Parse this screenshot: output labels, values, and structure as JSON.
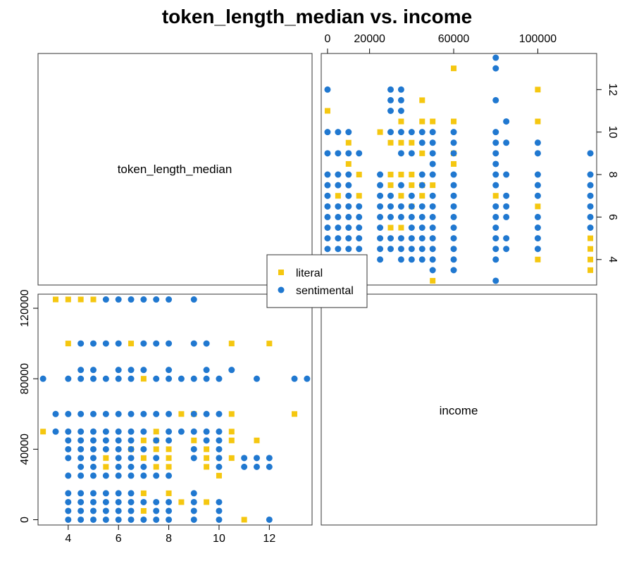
{
  "chart_data": {
    "type": "scatter",
    "title": "token_length_median vs. income",
    "variables": [
      "token_length_median",
      "income"
    ],
    "axes": {
      "token_length_median": {
        "range": [
          2.8,
          13.7
        ],
        "ticks": [
          4,
          6,
          8,
          10,
          12
        ]
      },
      "income": {
        "range": [
          -3000,
          128000
        ],
        "ticks_bottom_panel": [
          0,
          40000,
          80000,
          120000
        ],
        "ticks_top_panel": [
          0,
          20000,
          60000,
          100000
        ]
      }
    },
    "legend": {
      "position": "center",
      "entries": [
        "literal",
        "sentimental"
      ]
    },
    "series": [
      {
        "name": "literal",
        "color": "#F5C710",
        "marker": "square",
        "points": [
          [
            3.5,
            125000
          ],
          [
            4,
            125000
          ],
          [
            4.5,
            125000
          ],
          [
            5,
            125000
          ],
          [
            4,
            100000
          ],
          [
            6.5,
            100000
          ],
          [
            10.5,
            100000
          ],
          [
            12,
            100000
          ],
          [
            7,
            80000
          ],
          [
            8.5,
            60000
          ],
          [
            9,
            60000
          ],
          [
            10.5,
            60000
          ],
          [
            13,
            60000
          ],
          [
            3,
            50000
          ],
          [
            7.5,
            50000
          ],
          [
            10.5,
            50000
          ],
          [
            7,
            45000
          ],
          [
            7.5,
            45000
          ],
          [
            9,
            45000
          ],
          [
            10.5,
            45000
          ],
          [
            11.5,
            45000
          ],
          [
            6.5,
            40000
          ],
          [
            7.5,
            40000
          ],
          [
            8,
            40000
          ],
          [
            9.5,
            40000
          ],
          [
            5.5,
            35000
          ],
          [
            7,
            35000
          ],
          [
            8,
            35000
          ],
          [
            9.5,
            35000
          ],
          [
            10.5,
            35000
          ],
          [
            5.5,
            30000
          ],
          [
            7.5,
            30000
          ],
          [
            8,
            30000
          ],
          [
            9.5,
            30000
          ],
          [
            10,
            25000
          ],
          [
            7,
            15000
          ],
          [
            8,
            15000
          ],
          [
            8.5,
            10000
          ],
          [
            9.5,
            10000
          ],
          [
            7,
            5000
          ],
          [
            11,
            0
          ]
        ]
      },
      {
        "name": "sentimental",
        "color": "#2078D0",
        "marker": "circle",
        "points": [
          [
            5.5,
            125000
          ],
          [
            6,
            125000
          ],
          [
            6.5,
            125000
          ],
          [
            7,
            125000
          ],
          [
            7.5,
            125000
          ],
          [
            8,
            125000
          ],
          [
            9,
            125000
          ],
          [
            4.5,
            100000
          ],
          [
            5,
            100000
          ],
          [
            5.5,
            100000
          ],
          [
            6,
            100000
          ],
          [
            7,
            100000
          ],
          [
            7.5,
            100000
          ],
          [
            8,
            100000
          ],
          [
            9,
            100000
          ],
          [
            9.5,
            100000
          ],
          [
            4.5,
            85000
          ],
          [
            5,
            85000
          ],
          [
            6,
            85000
          ],
          [
            6.5,
            85000
          ],
          [
            7,
            85000
          ],
          [
            8,
            85000
          ],
          [
            9.5,
            85000
          ],
          [
            10.5,
            85000
          ],
          [
            3,
            80000
          ],
          [
            4,
            80000
          ],
          [
            4.5,
            80000
          ],
          [
            5,
            80000
          ],
          [
            5.5,
            80000
          ],
          [
            6,
            80000
          ],
          [
            6.5,
            80000
          ],
          [
            7.5,
            80000
          ],
          [
            8,
            80000
          ],
          [
            8.5,
            80000
          ],
          [
            9,
            80000
          ],
          [
            9.5,
            80000
          ],
          [
            10,
            80000
          ],
          [
            11.5,
            80000
          ],
          [
            13,
            80000
          ],
          [
            13.5,
            80000
          ],
          [
            3.5,
            60000
          ],
          [
            4,
            60000
          ],
          [
            4.5,
            60000
          ],
          [
            5,
            60000
          ],
          [
            5.5,
            60000
          ],
          [
            6,
            60000
          ],
          [
            6.5,
            60000
          ],
          [
            7,
            60000
          ],
          [
            7.5,
            60000
          ],
          [
            8,
            60000
          ],
          [
            9,
            60000
          ],
          [
            9.5,
            60000
          ],
          [
            10,
            60000
          ],
          [
            3.5,
            50000
          ],
          [
            4,
            50000
          ],
          [
            4.5,
            50000
          ],
          [
            5,
            50000
          ],
          [
            5.5,
            50000
          ],
          [
            6,
            50000
          ],
          [
            6.5,
            50000
          ],
          [
            7,
            50000
          ],
          [
            8,
            50000
          ],
          [
            8.5,
            50000
          ],
          [
            9,
            50000
          ],
          [
            9.5,
            50000
          ],
          [
            10,
            50000
          ],
          [
            4,
            45000
          ],
          [
            4.5,
            45000
          ],
          [
            5,
            45000
          ],
          [
            5.5,
            45000
          ],
          [
            6,
            45000
          ],
          [
            6.5,
            45000
          ],
          [
            7.5,
            45000
          ],
          [
            8,
            45000
          ],
          [
            9.5,
            45000
          ],
          [
            10,
            45000
          ],
          [
            4,
            40000
          ],
          [
            4.5,
            40000
          ],
          [
            5,
            40000
          ],
          [
            5.5,
            40000
          ],
          [
            6,
            40000
          ],
          [
            6.5,
            40000
          ],
          [
            7,
            40000
          ],
          [
            9,
            40000
          ],
          [
            10,
            40000
          ],
          [
            4,
            35000
          ],
          [
            4.5,
            35000
          ],
          [
            5,
            35000
          ],
          [
            6,
            35000
          ],
          [
            6.5,
            35000
          ],
          [
            7.5,
            35000
          ],
          [
            9,
            35000
          ],
          [
            10,
            35000
          ],
          [
            11,
            35000
          ],
          [
            11.5,
            35000
          ],
          [
            12,
            35000
          ],
          [
            4.5,
            30000
          ],
          [
            5,
            30000
          ],
          [
            6,
            30000
          ],
          [
            6.5,
            30000
          ],
          [
            7,
            30000
          ],
          [
            10,
            30000
          ],
          [
            11,
            30000
          ],
          [
            11.5,
            30000
          ],
          [
            12,
            30000
          ],
          [
            4,
            25000
          ],
          [
            4.5,
            25000
          ],
          [
            5,
            25000
          ],
          [
            5.5,
            25000
          ],
          [
            6,
            25000
          ],
          [
            6.5,
            25000
          ],
          [
            7,
            25000
          ],
          [
            7.5,
            25000
          ],
          [
            8,
            25000
          ],
          [
            4,
            15000
          ],
          [
            4.5,
            15000
          ],
          [
            5,
            15000
          ],
          [
            5.5,
            15000
          ],
          [
            6,
            15000
          ],
          [
            6.5,
            15000
          ],
          [
            9,
            15000
          ],
          [
            4,
            10000
          ],
          [
            4.5,
            10000
          ],
          [
            5,
            10000
          ],
          [
            5.5,
            10000
          ],
          [
            6,
            10000
          ],
          [
            6.5,
            10000
          ],
          [
            7,
            10000
          ],
          [
            7.5,
            10000
          ],
          [
            8,
            10000
          ],
          [
            9,
            10000
          ],
          [
            10,
            10000
          ],
          [
            4,
            5000
          ],
          [
            4.5,
            5000
          ],
          [
            5,
            5000
          ],
          [
            5.5,
            5000
          ],
          [
            6,
            5000
          ],
          [
            6.5,
            5000
          ],
          [
            7.5,
            5000
          ],
          [
            8,
            5000
          ],
          [
            9,
            5000
          ],
          [
            10,
            5000
          ],
          [
            4,
            0
          ],
          [
            4.5,
            0
          ],
          [
            5,
            0
          ],
          [
            5.5,
            0
          ],
          [
            6,
            0
          ],
          [
            6.5,
            0
          ],
          [
            7,
            0
          ],
          [
            7.5,
            0
          ],
          [
            8,
            0
          ],
          [
            9,
            0
          ],
          [
            10,
            0
          ],
          [
            12,
            0
          ]
        ]
      }
    ]
  }
}
